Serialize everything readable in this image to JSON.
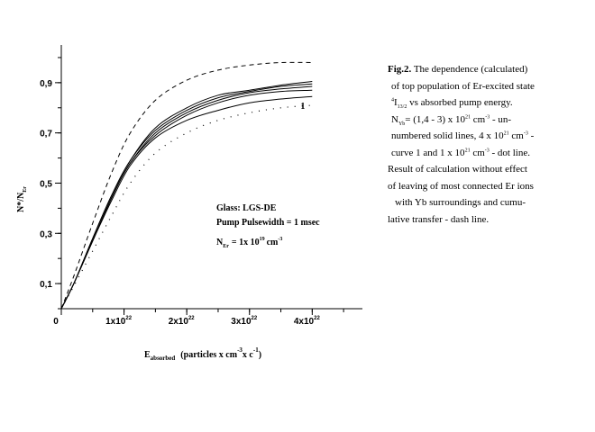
{
  "chart_data": {
    "type": "line",
    "xlabel": {
      "main": "E",
      "sub": "absorbed",
      "unit": "(particles x cm",
      "exp1": "-3",
      "mid": "x c",
      "exp2": "-1",
      "end": ")"
    },
    "ylabel": {
      "main": "N*/N",
      "sub": "Er"
    },
    "xlim": [
      0,
      4.8e+22
    ],
    "ylim": [
      0,
      1.05
    ],
    "x_ticks": [
      {
        "value": 0,
        "base": "0",
        "exp": ""
      },
      {
        "value": 1e+22,
        "base": "1x10",
        "exp": "22"
      },
      {
        "value": 2e+22,
        "base": "2x10",
        "exp": "22"
      },
      {
        "value": 3e+22,
        "base": "3x10",
        "exp": "22"
      },
      {
        "value": 4e+22,
        "base": "4x10",
        "exp": "22"
      }
    ],
    "y_ticks": [
      {
        "value": 0.1,
        "label": "0,1"
      },
      {
        "value": 0.3,
        "label": "0,3"
      },
      {
        "value": 0.5,
        "label": "0,5"
      },
      {
        "value": 0.7,
        "label": "0,7"
      },
      {
        "value": 0.9,
        "label": "0,9"
      }
    ],
    "grid": false,
    "series": [
      {
        "style": "dash",
        "x": [
          0,
          2e+21,
          5e+21,
          8e+21,
          1.1e+22,
          1.5e+22,
          2e+22,
          2.5e+22,
          3e+22,
          3.5e+22,
          4e+22
        ],
        "y": [
          0,
          0.13,
          0.34,
          0.54,
          0.7,
          0.83,
          0.91,
          0.95,
          0.97,
          0.98,
          0.98
        ]
      },
      {
        "style": "solid",
        "x": [
          0,
          2e+21,
          5e+21,
          8e+21,
          1.1e+22,
          1.5e+22,
          2e+22,
          2.5e+22,
          3e+22,
          3.5e+22,
          4e+22
        ],
        "y": [
          0,
          0.1,
          0.28,
          0.45,
          0.59,
          0.72,
          0.8,
          0.85,
          0.87,
          0.89,
          0.905
        ]
      },
      {
        "style": "solid",
        "x": [
          0,
          2e+21,
          5e+21,
          8e+21,
          1.1e+22,
          1.5e+22,
          2e+22,
          2.5e+22,
          3e+22,
          3.5e+22,
          4e+22
        ],
        "y": [
          0,
          0.1,
          0.28,
          0.45,
          0.59,
          0.71,
          0.79,
          0.84,
          0.865,
          0.885,
          0.895
        ]
      },
      {
        "style": "solid",
        "x": [
          0,
          2e+21,
          5e+21,
          8e+21,
          1.1e+22,
          1.5e+22,
          2e+22,
          2.5e+22,
          3e+22,
          3.5e+22,
          4e+22
        ],
        "y": [
          0,
          0.1,
          0.27,
          0.44,
          0.58,
          0.7,
          0.78,
          0.83,
          0.86,
          0.875,
          0.885
        ]
      },
      {
        "style": "solid",
        "x": [
          0,
          2e+21,
          5e+21,
          8e+21,
          1.1e+22,
          1.5e+22,
          2e+22,
          2.5e+22,
          3e+22,
          3.5e+22,
          4e+22
        ],
        "y": [
          0,
          0.1,
          0.27,
          0.44,
          0.58,
          0.69,
          0.77,
          0.82,
          0.85,
          0.865,
          0.87
        ]
      },
      {
        "style": "solid",
        "x": [
          0,
          2e+21,
          5e+21,
          8e+21,
          1.1e+22,
          1.5e+22,
          2e+22,
          2.5e+22,
          3e+22,
          3.5e+22,
          4e+22
        ],
        "y": [
          0,
          0.1,
          0.27,
          0.43,
          0.57,
          0.68,
          0.75,
          0.79,
          0.82,
          0.835,
          0.845
        ]
      },
      {
        "style": "dot",
        "x": [
          0,
          2e+21,
          5e+21,
          8e+21,
          1.1e+22,
          1.5e+22,
          2e+22,
          2.5e+22,
          3e+22,
          3.5e+22,
          4e+22
        ],
        "y": [
          0,
          0.09,
          0.23,
          0.37,
          0.5,
          0.62,
          0.7,
          0.75,
          0.78,
          0.8,
          0.81
        ]
      }
    ],
    "curve_label": {
      "text": "1",
      "x": 3.9e+22,
      "y": 0.81
    },
    "annotations": {
      "glass": "Glass: LGS-DE",
      "pulse": "Pump Pulsewidth = 1 msec",
      "ner_main": "N",
      "ner_sub": "Er",
      "ner_value": "= 1x 10",
      "ner_exp": "19",
      "ner_unit": "cm",
      "ner_unit_exp": "-3"
    }
  },
  "caption": {
    "fig": "Fig.2.",
    "l1": " The dependence (calculated)",
    "l2": "of top population of Er-excited state",
    "l3_sup": "4",
    "l3_main": "I",
    "l3_sub": "13/2",
    "l3_rest": " vs absorbed pump energy.",
    "l4_a": "N",
    "l4_sub": "Yb",
    "l4_b": "= (1,4 - 3) x 10",
    "l4_sup1": "21",
    "l4_c": " cm",
    "l4_sup2": "-3",
    "l4_d": " - un-",
    "l5_a": "numbered solid lines, 4 x  10",
    "l5_sup1": "21",
    "l5_b": " cm",
    "l5_sup2": "-3",
    "l5_c": " -",
    "l6_a": "curve 1 and 1 x  10",
    "l6_sup1": "21",
    "l6_b": " cm",
    "l6_sup2": "-3",
    "l6_c": " - dot line.",
    "l7": "Result of calculation without effect",
    "l8": "of leaving of most connected Er ions",
    "l9": "with Yb surroundings and cumu-",
    "l10": "lative transfer - dash line."
  }
}
